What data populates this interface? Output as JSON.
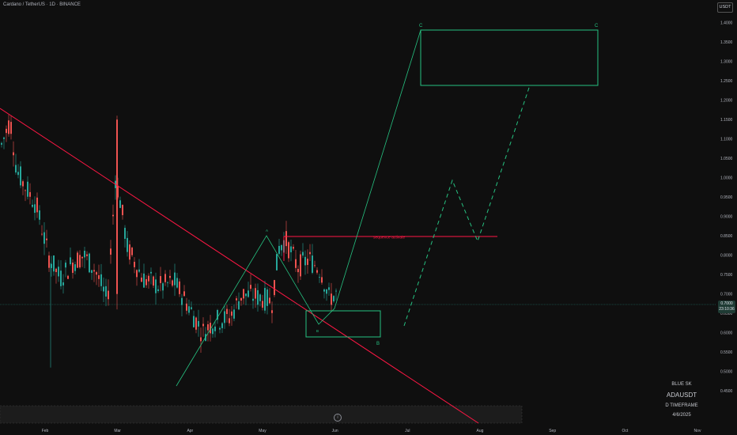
{
  "header": {
    "title": "Cardano / TetherUS · 1D · BINANCE",
    "currency": "USDT"
  },
  "price_badge": {
    "price": "0.7000",
    "countdown": "23:10:36"
  },
  "watermark": {
    "author": "BLUE SK",
    "symbol": "ADAUSDT",
    "timeframe": "D TIMEFRAME",
    "date": "4/6/2025"
  },
  "colors": {
    "background": "#0f0f0f",
    "up": "#26a69a",
    "down": "#ef5350",
    "trendline": "#ff1744",
    "projection": "#26c281"
  },
  "chart_data": {
    "type": "candlestick",
    "y_axis": {
      "ticks": [
        "1.4000",
        "1.3500",
        "1.3000",
        "1.2500",
        "1.2000",
        "1.1500",
        "1.1000",
        "1.0500",
        "1.0000",
        "0.9500",
        "0.9000",
        "0.8500",
        "0.8000",
        "0.7500",
        "0.7000",
        "0.6500",
        "0.6000",
        "0.5500",
        "0.5000",
        "0.4500"
      ],
      "range": [
        0.43,
        1.43
      ]
    },
    "x_axis": {
      "ticks": [
        "Feb",
        "Mar",
        "Apr",
        "May",
        "Jun",
        "Jul",
        "Aug",
        "Sep",
        "Oct",
        "Nov"
      ]
    },
    "annotations": {
      "sequence_label": "sequence activate",
      "wave_a": "A",
      "wave_b_small": "B",
      "wave_c_box_left": "C",
      "wave_c_box_right": "C",
      "box_b_label": "B"
    },
    "key_levels": {
      "sequence_activate": 0.865,
      "current_price": 0.7
    },
    "zones": {
      "target_c": {
        "from": "2025-07-01",
        "to": "2025-08-10",
        "low": 1.225,
        "high": 1.395
      },
      "support_b": {
        "from": "2025-05-19",
        "to": "2025-06-20",
        "low": 0.625,
        "high": 0.685
      }
    }
  }
}
